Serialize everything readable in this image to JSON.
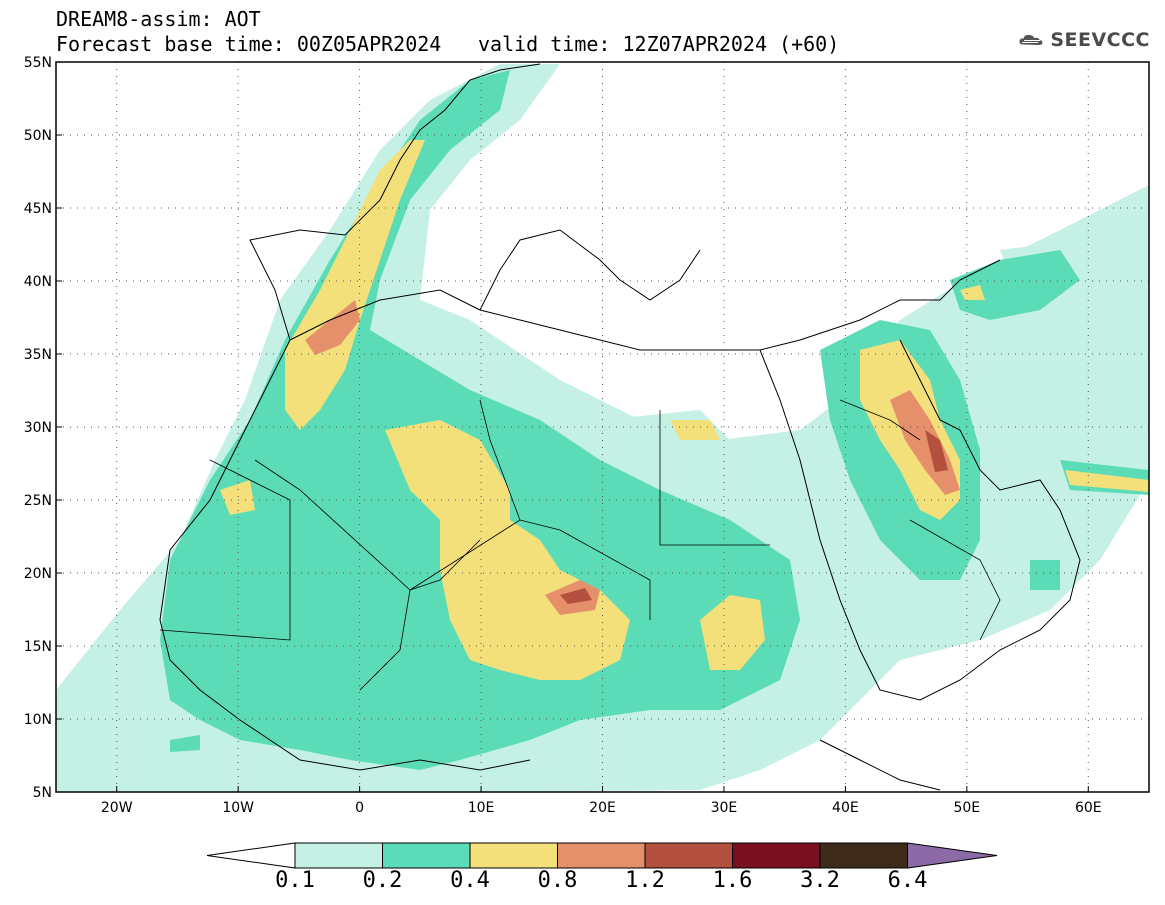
{
  "header": {
    "title_line1": "DREAM8-assim: AOT",
    "base_time": "Forecast base time: 00Z05APR2024",
    "valid_time": "valid time: 12Z07APR2024 (+60)",
    "logo_text": "SEEVCCC",
    "logo_icon": "cloud-icon"
  },
  "map": {
    "lat_labels": [
      "55N",
      "50N",
      "45N",
      "40N",
      "35N",
      "30N",
      "25N",
      "20N",
      "15N",
      "10N",
      "5N"
    ],
    "lat_values": [
      55,
      50,
      45,
      40,
      35,
      30,
      25,
      20,
      15,
      10,
      5
    ],
    "lon_labels": [
      "20W",
      "10W",
      "0",
      "10E",
      "20E",
      "30E",
      "40E",
      "50E",
      "60E"
    ],
    "lon_values": [
      -20,
      -10,
      0,
      10,
      20,
      30,
      40,
      50,
      60
    ],
    "extent": {
      "lon_min": -25,
      "lon_max": 65,
      "lat_min": 5,
      "lat_max": 55
    },
    "grid": "dotted"
  },
  "colorbar": {
    "labels": [
      "0.1",
      "0.2",
      "0.4",
      "0.8",
      "1.2",
      "1.6",
      "3.2",
      "6.4"
    ],
    "colors": [
      "#ffffff",
      "#c4f0e6",
      "#5bdcb6",
      "#f3e07a",
      "#e5906a",
      "#b4503e",
      "#7a0f22",
      "#3e2b1a",
      "#8c6aa8"
    ]
  }
}
